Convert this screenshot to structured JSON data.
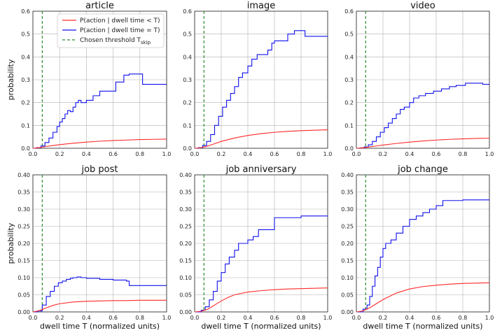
{
  "figure": {
    "legend": [
      {
        "label": "P(action | dwell time < T)",
        "color": "#ff2a2a",
        "style": "solid"
      },
      {
        "label": "P(action | dwell time = T)",
        "color": "#1010ee",
        "style": "solid"
      },
      {
        "label": "Chosen threshold T",
        "subscript": "skip",
        "color": "#2d8a2d",
        "style": "dashed"
      }
    ]
  },
  "chart_data": [
    {
      "type": "line",
      "title": "article",
      "xlabel": "",
      "ylabel": "probability",
      "xlim": [
        0,
        1.0
      ],
      "ylim": [
        0,
        0.6
      ],
      "xticks": [
        "0.0",
        "0.2",
        "0.4",
        "0.6",
        "0.8",
        "1.0"
      ],
      "yticks": [
        "0.0",
        "0.1",
        "0.2",
        "0.3",
        "0.4",
        "0.5",
        "0.6"
      ],
      "threshold": 0.07,
      "series": [
        {
          "name": "P(action | dwell time = T)",
          "color": "#1010ee",
          "step": true,
          "x": [
            0,
            0.03,
            0.06,
            0.09,
            0.12,
            0.15,
            0.18,
            0.2,
            0.22,
            0.24,
            0.26,
            0.28,
            0.3,
            0.32,
            0.34,
            0.36,
            0.4,
            0.45,
            0.5,
            0.55,
            0.62,
            0.68,
            0.72,
            0.75,
            0.82,
            1.0
          ],
          "y": [
            0,
            0.003,
            0.01,
            0.025,
            0.045,
            0.07,
            0.095,
            0.115,
            0.13,
            0.15,
            0.165,
            0.16,
            0.18,
            0.2,
            0.21,
            0.2,
            0.21,
            0.23,
            0.25,
            0.25,
            0.29,
            0.32,
            0.325,
            0.325,
            0.28,
            0.28
          ]
        },
        {
          "name": "P(action | dwell time < T)",
          "color": "#ff2a2a",
          "step": false,
          "x": [
            0,
            0.05,
            0.1,
            0.15,
            0.2,
            0.3,
            0.4,
            0.5,
            0.6,
            0.7,
            0.8,
            0.9,
            1.0
          ],
          "y": [
            0,
            0.003,
            0.008,
            0.012,
            0.016,
            0.022,
            0.027,
            0.031,
            0.034,
            0.036,
            0.038,
            0.039,
            0.04
          ]
        }
      ]
    },
    {
      "type": "line",
      "title": "image",
      "xlabel": "",
      "ylabel": "",
      "xlim": [
        0,
        1.0
      ],
      "ylim": [
        0,
        0.6
      ],
      "xticks": [
        "0.0",
        "0.2",
        "0.4",
        "0.6",
        "0.8",
        "1.0"
      ],
      "yticks": [
        "0.0",
        "0.1",
        "0.2",
        "0.3",
        "0.4",
        "0.5",
        "0.6"
      ],
      "threshold": 0.07,
      "series": [
        {
          "name": "P(action | dwell time = T)",
          "color": "#1010ee",
          "step": true,
          "x": [
            0,
            0.03,
            0.06,
            0.09,
            0.12,
            0.15,
            0.18,
            0.21,
            0.24,
            0.27,
            0.3,
            0.33,
            0.36,
            0.4,
            0.43,
            0.47,
            0.5,
            0.55,
            0.58,
            0.6,
            0.63,
            0.7,
            0.75,
            0.8,
            0.83,
            1.0
          ],
          "y": [
            0,
            0.003,
            0.012,
            0.03,
            0.06,
            0.1,
            0.14,
            0.18,
            0.21,
            0.24,
            0.27,
            0.31,
            0.33,
            0.36,
            0.39,
            0.41,
            0.41,
            0.43,
            0.46,
            0.47,
            0.47,
            0.5,
            0.515,
            0.515,
            0.49,
            0.49
          ]
        },
        {
          "name": "P(action | dwell time < T)",
          "color": "#ff2a2a",
          "step": false,
          "x": [
            0,
            0.05,
            0.1,
            0.15,
            0.2,
            0.3,
            0.4,
            0.5,
            0.6,
            0.7,
            0.8,
            0.9,
            1.0
          ],
          "y": [
            0,
            0.003,
            0.01,
            0.02,
            0.03,
            0.045,
            0.056,
            0.064,
            0.07,
            0.074,
            0.077,
            0.079,
            0.081
          ]
        }
      ]
    },
    {
      "type": "line",
      "title": "video",
      "xlabel": "",
      "ylabel": "",
      "xlim": [
        0,
        1.0
      ],
      "ylim": [
        0,
        0.6
      ],
      "xticks": [
        "0.0",
        "0.2",
        "0.4",
        "0.6",
        "0.8",
        "1.0"
      ],
      "yticks": [
        "0.0",
        "0.1",
        "0.2",
        "0.3",
        "0.4",
        "0.5",
        "0.6"
      ],
      "threshold": 0.07,
      "series": [
        {
          "name": "P(action | dwell time = T)",
          "color": "#1010ee",
          "step": true,
          "x": [
            0,
            0.03,
            0.06,
            0.09,
            0.12,
            0.15,
            0.18,
            0.21,
            0.24,
            0.27,
            0.3,
            0.33,
            0.36,
            0.4,
            0.43,
            0.47,
            0.52,
            0.58,
            0.64,
            0.7,
            0.75,
            0.82,
            0.9,
            0.95,
            1.0
          ],
          "y": [
            0,
            0.002,
            0.006,
            0.015,
            0.03,
            0.05,
            0.07,
            0.09,
            0.11,
            0.13,
            0.15,
            0.17,
            0.18,
            0.2,
            0.22,
            0.23,
            0.24,
            0.25,
            0.26,
            0.27,
            0.275,
            0.285,
            0.285,
            0.28,
            0.28
          ]
        },
        {
          "name": "P(action | dwell time < T)",
          "color": "#ff2a2a",
          "step": false,
          "x": [
            0,
            0.05,
            0.1,
            0.15,
            0.2,
            0.3,
            0.4,
            0.5,
            0.6,
            0.7,
            0.8,
            0.9,
            1.0
          ],
          "y": [
            0,
            0.002,
            0.006,
            0.01,
            0.014,
            0.021,
            0.027,
            0.032,
            0.036,
            0.039,
            0.041,
            0.043,
            0.044
          ]
        }
      ]
    },
    {
      "type": "line",
      "title": "job post",
      "xlabel": "dwell time T (normalized units)",
      "ylabel": "probability",
      "xlim": [
        0,
        1.0
      ],
      "ylim": [
        0,
        0.4
      ],
      "xticks": [
        "0.0",
        "0.2",
        "0.4",
        "0.6",
        "0.8",
        "1.0"
      ],
      "yticks": [
        "0.00",
        "0.05",
        "0.10",
        "0.15",
        "0.20",
        "0.25",
        "0.30",
        "0.35",
        "0.40"
      ],
      "threshold": 0.07,
      "series": [
        {
          "name": "P(action | dwell time = T)",
          "color": "#1010ee",
          "step": true,
          "x": [
            0,
            0.04,
            0.07,
            0.1,
            0.13,
            0.16,
            0.19,
            0.22,
            0.25,
            0.28,
            0.3,
            0.33,
            0.36,
            0.4,
            0.5,
            0.6,
            0.7,
            0.72,
            0.8,
            1.0
          ],
          "y": [
            0,
            0.003,
            0.02,
            0.045,
            0.06,
            0.075,
            0.085,
            0.09,
            0.095,
            0.098,
            0.1,
            0.102,
            0.1,
            0.098,
            0.095,
            0.093,
            0.09,
            0.077,
            0.077,
            0.077
          ]
        },
        {
          "name": "P(action | dwell time < T)",
          "color": "#ff2a2a",
          "step": false,
          "x": [
            0,
            0.05,
            0.1,
            0.15,
            0.2,
            0.3,
            0.4,
            0.5,
            0.6,
            0.7,
            0.8,
            0.9,
            1.0
          ],
          "y": [
            0,
            0.004,
            0.012,
            0.019,
            0.024,
            0.029,
            0.031,
            0.032,
            0.033,
            0.033,
            0.034,
            0.034,
            0.034
          ]
        }
      ]
    },
    {
      "type": "line",
      "title": "job anniversary",
      "xlabel": "dwell time T (normalized units)",
      "ylabel": "",
      "xlim": [
        0,
        1.0
      ],
      "ylim": [
        0,
        0.4
      ],
      "xticks": [
        "0.0",
        "0.2",
        "0.4",
        "0.6",
        "0.8",
        "1.0"
      ],
      "yticks": [
        "0.00",
        "0.05",
        "0.10",
        "0.15",
        "0.20",
        "0.25",
        "0.30",
        "0.35",
        "0.40"
      ],
      "threshold": 0.07,
      "series": [
        {
          "name": "P(action | dwell time = T)",
          "color": "#1010ee",
          "step": true,
          "x": [
            0,
            0.05,
            0.08,
            0.11,
            0.14,
            0.17,
            0.2,
            0.23,
            0.26,
            0.3,
            0.33,
            0.36,
            0.4,
            0.44,
            0.48,
            0.52,
            0.6,
            0.65,
            0.7,
            0.8,
            1.0
          ],
          "y": [
            0,
            0.005,
            0.015,
            0.035,
            0.06,
            0.09,
            0.115,
            0.14,
            0.16,
            0.18,
            0.2,
            0.2,
            0.21,
            0.22,
            0.24,
            0.24,
            0.275,
            0.275,
            0.275,
            0.28,
            0.28
          ]
        },
        {
          "name": "P(action | dwell time < T)",
          "color": "#ff2a2a",
          "step": false,
          "x": [
            0,
            0.05,
            0.1,
            0.15,
            0.2,
            0.25,
            0.3,
            0.4,
            0.5,
            0.6,
            0.7,
            0.8,
            0.9,
            1.0
          ],
          "y": [
            0,
            0.002,
            0.008,
            0.02,
            0.032,
            0.042,
            0.05,
            0.058,
            0.062,
            0.065,
            0.067,
            0.068,
            0.069,
            0.07
          ]
        }
      ]
    },
    {
      "type": "line",
      "title": "job change",
      "xlabel": "dwell time T (normalized units)",
      "ylabel": "",
      "xlim": [
        0,
        1.0
      ],
      "ylim": [
        0,
        0.4
      ],
      "xticks": [
        "0.0",
        "0.2",
        "0.4",
        "0.6",
        "0.8",
        "1.0"
      ],
      "yticks": [
        "0.00",
        "0.05",
        "0.10",
        "0.15",
        "0.20",
        "0.25",
        "0.30",
        "0.35",
        "0.40"
      ],
      "threshold": 0.07,
      "series": [
        {
          "name": "P(action | dwell time = T)",
          "color": "#1010ee",
          "step": true,
          "x": [
            0,
            0.05,
            0.08,
            0.1,
            0.12,
            0.14,
            0.16,
            0.18,
            0.2,
            0.22,
            0.24,
            0.26,
            0.3,
            0.35,
            0.4,
            0.45,
            0.5,
            0.55,
            0.6,
            0.65,
            0.7,
            0.8,
            1.0
          ],
          "y": [
            0,
            0.008,
            0.02,
            0.045,
            0.075,
            0.105,
            0.13,
            0.16,
            0.185,
            0.2,
            0.2,
            0.21,
            0.23,
            0.25,
            0.27,
            0.28,
            0.29,
            0.3,
            0.31,
            0.325,
            0.325,
            0.327,
            0.327
          ]
        },
        {
          "name": "P(action | dwell time < T)",
          "color": "#ff2a2a",
          "step": false,
          "x": [
            0,
            0.05,
            0.1,
            0.15,
            0.2,
            0.3,
            0.4,
            0.5,
            0.6,
            0.7,
            0.8,
            0.9,
            1.0
          ],
          "y": [
            0,
            0.003,
            0.012,
            0.024,
            0.036,
            0.055,
            0.067,
            0.074,
            0.078,
            0.081,
            0.083,
            0.084,
            0.085
          ]
        }
      ]
    }
  ]
}
